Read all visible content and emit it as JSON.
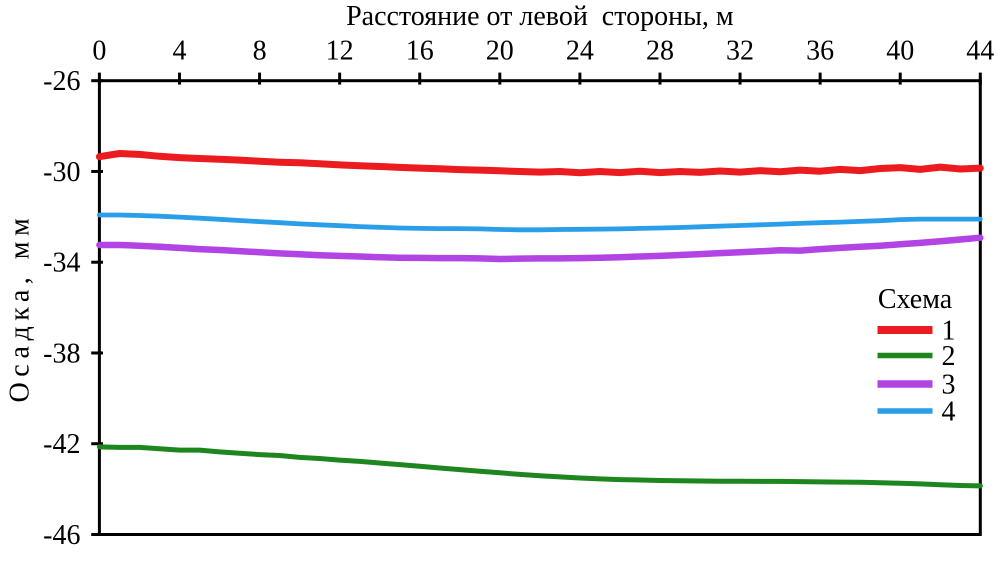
{
  "chart_data": {
    "type": "line",
    "xlabel": "Расстояние от левой  стороны, м",
    "ylabel": "Осадка, мм",
    "xlim": [
      0,
      44
    ],
    "ylim": [
      -46,
      -26
    ],
    "x_ticks": [
      0,
      4,
      8,
      12,
      16,
      20,
      24,
      28,
      32,
      36,
      40,
      44
    ],
    "y_ticks": [
      -26,
      -30,
      -34,
      -38,
      -42,
      -46
    ],
    "grid": false,
    "frame": true,
    "x_axis_position": "top",
    "x": [
      0,
      1,
      2,
      3,
      4,
      5,
      6,
      7,
      8,
      9,
      10,
      11,
      12,
      13,
      14,
      15,
      16,
      17,
      18,
      19,
      20,
      21,
      22,
      23,
      24,
      25,
      26,
      27,
      28,
      29,
      30,
      31,
      32,
      33,
      34,
      35,
      36,
      37,
      38,
      39,
      40,
      41,
      42,
      43,
      44
    ],
    "series": [
      {
        "name": "1",
        "color": "#ec1b1f",
        "line_width": 7,
        "values": [
          -29.35,
          -29.21,
          -29.25,
          -29.33,
          -29.39,
          -29.43,
          -29.46,
          -29.5,
          -29.55,
          -29.59,
          -29.62,
          -29.66,
          -29.71,
          -29.75,
          -29.78,
          -29.82,
          -29.85,
          -29.88,
          -29.92,
          -29.94,
          -29.97,
          -30.0,
          -30.03,
          -30.0,
          -30.06,
          -30.0,
          -30.05,
          -29.99,
          -30.05,
          -30.0,
          -30.04,
          -29.98,
          -30.03,
          -29.96,
          -30.01,
          -29.94,
          -29.99,
          -29.91,
          -29.96,
          -29.87,
          -29.83,
          -29.91,
          -29.81,
          -29.89,
          -29.85
        ]
      },
      {
        "name": "2",
        "color": "#1d861e",
        "line_width": 5,
        "values": [
          -42.14,
          -42.16,
          -42.16,
          -42.22,
          -42.28,
          -42.28,
          -42.36,
          -42.42,
          -42.48,
          -42.52,
          -42.6,
          -42.65,
          -42.72,
          -42.78,
          -42.85,
          -42.92,
          -42.99,
          -43.07,
          -43.14,
          -43.21,
          -43.28,
          -43.35,
          -43.41,
          -43.46,
          -43.51,
          -43.55,
          -43.58,
          -43.6,
          -43.62,
          -43.63,
          -43.64,
          -43.65,
          -43.65,
          -43.66,
          -43.66,
          -43.67,
          -43.68,
          -43.69,
          -43.7,
          -43.72,
          -43.74,
          -43.77,
          -43.81,
          -43.84,
          -43.86
        ]
      },
      {
        "name": "3",
        "color": "#b244e4",
        "line_width": 6.5,
        "values": [
          -33.24,
          -33.24,
          -33.27,
          -33.32,
          -33.37,
          -33.42,
          -33.46,
          -33.51,
          -33.56,
          -33.61,
          -33.65,
          -33.69,
          -33.72,
          -33.75,
          -33.78,
          -33.8,
          -33.81,
          -33.82,
          -33.82,
          -33.83,
          -33.86,
          -33.84,
          -33.83,
          -33.83,
          -33.82,
          -33.8,
          -33.78,
          -33.75,
          -33.72,
          -33.68,
          -33.64,
          -33.6,
          -33.56,
          -33.52,
          -33.47,
          -33.49,
          -33.42,
          -33.37,
          -33.32,
          -33.27,
          -33.21,
          -33.15,
          -33.08,
          -33.0,
          -32.92
        ]
      },
      {
        "name": "4",
        "color": "#2a9ee8",
        "line_width": 4.8,
        "values": [
          -31.92,
          -31.92,
          -31.94,
          -31.97,
          -32.01,
          -32.06,
          -32.11,
          -32.16,
          -32.21,
          -32.26,
          -32.31,
          -32.35,
          -32.39,
          -32.43,
          -32.46,
          -32.49,
          -32.51,
          -32.52,
          -32.52,
          -32.53,
          -32.56,
          -32.57,
          -32.57,
          -32.56,
          -32.55,
          -32.54,
          -32.53,
          -32.51,
          -32.49,
          -32.47,
          -32.44,
          -32.41,
          -32.38,
          -32.35,
          -32.32,
          -32.29,
          -32.26,
          -32.23,
          -32.2,
          -32.17,
          -32.12,
          -32.1,
          -32.1,
          -32.1,
          -32.1
        ]
      }
    ],
    "legend": {
      "title": "Схема",
      "position": "right-middle",
      "entries": [
        "1",
        "2",
        "3",
        "4"
      ]
    },
    "axis_color": "#000000",
    "text_color": "#000000"
  }
}
